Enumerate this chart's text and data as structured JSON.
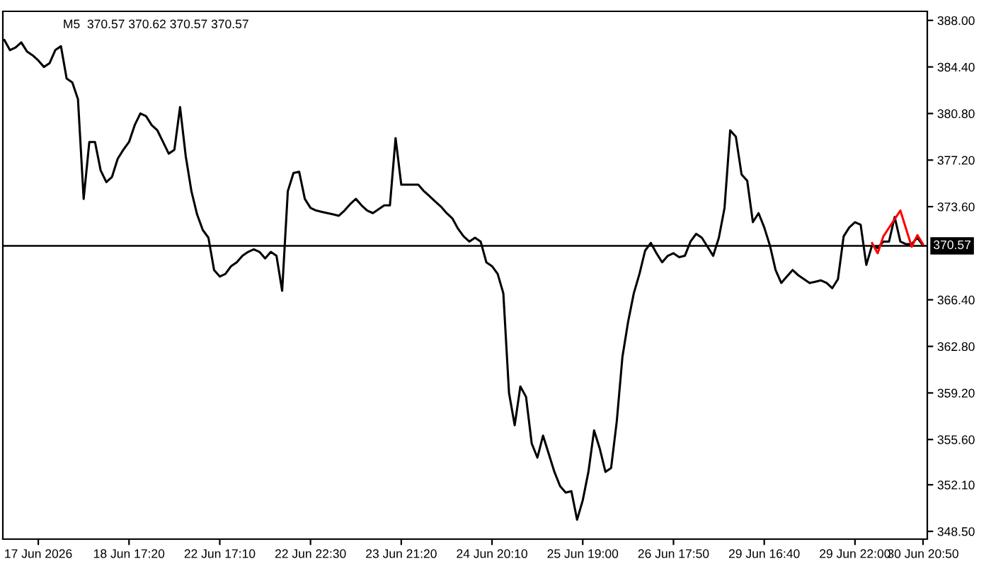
{
  "chart_data": {
    "type": "line",
    "title": "M5  370.57 370.62 370.57 370.57",
    "ylim": [
      347.9,
      388.7
    ],
    "categories": [
      null,
      null,
      null,
      null,
      null,
      null,
      "17 Jun 2026",
      null,
      null,
      null,
      null,
      null,
      null,
      null,
      null,
      null,
      null,
      null,
      null,
      null,
      null,
      null,
      "18 Jun 17:20",
      null,
      null,
      null,
      null,
      null,
      null,
      null,
      null,
      null,
      null,
      null,
      null,
      null,
      null,
      null,
      "22 Jun 17:10",
      null,
      null,
      null,
      null,
      null,
      null,
      null,
      null,
      null,
      null,
      null,
      null,
      null,
      null,
      null,
      "22 Jun 22:30",
      null,
      null,
      null,
      null,
      null,
      null,
      null,
      null,
      null,
      null,
      null,
      null,
      null,
      null,
      null,
      "23 Jun 21:20",
      null,
      null,
      null,
      null,
      null,
      null,
      null,
      null,
      null,
      null,
      null,
      null,
      null,
      null,
      null,
      "24 Jun 20:10",
      null,
      null,
      null,
      null,
      null,
      null,
      null,
      null,
      null,
      null,
      null,
      null,
      null,
      null,
      null,
      "25 Jun 19:00",
      null,
      null,
      null,
      null,
      null,
      null,
      null,
      null,
      null,
      null,
      null,
      null,
      null,
      null,
      null,
      "26 Jun 17:50",
      null,
      null,
      null,
      null,
      null,
      null,
      null,
      null,
      null,
      null,
      null,
      null,
      null,
      null,
      null,
      "29 Jun 16:40",
      null,
      null,
      null,
      null,
      null,
      null,
      null,
      null,
      null,
      null,
      null,
      null,
      null,
      null,
      null,
      "29 Jun 22:00",
      null,
      null,
      null,
      null,
      null,
      null,
      null,
      null,
      null,
      null,
      null,
      "30 Jun 20:50"
    ],
    "yticks": [
      {
        "value": 348.5,
        "label": "348.50"
      },
      {
        "value": 352.1,
        "label": "352.10"
      },
      {
        "value": 355.6,
        "label": "355.60"
      },
      {
        "value": 359.2,
        "label": "359.20"
      },
      {
        "value": 362.8,
        "label": "362.80"
      },
      {
        "value": 366.4,
        "label": "366.40"
      },
      {
        "value": 373.6,
        "label": "373.60"
      },
      {
        "value": 377.2,
        "label": "377.20"
      },
      {
        "value": 380.8,
        "label": "380.80"
      },
      {
        "value": 384.4,
        "label": "384.40"
      },
      {
        "value": 388.0,
        "label": "388.00"
      }
    ],
    "grid": false,
    "ref_lines": [
      {
        "axis": "y",
        "value": 370.57,
        "label": "370.57",
        "color": "#000000"
      }
    ],
    "series": [
      {
        "color": "#000000",
        "values": [
          386.5,
          385.7,
          385.9,
          386.3,
          385.6,
          385.3,
          384.9,
          384.4,
          384.7,
          385.7,
          386.0,
          383.5,
          383.2,
          381.9,
          374.2,
          378.6,
          378.6,
          376.4,
          375.5,
          375.9,
          377.3,
          378.0,
          378.6,
          379.9,
          380.8,
          380.6,
          379.9,
          379.5,
          378.6,
          377.7,
          378.0,
          381.3,
          377.5,
          374.8,
          373.0,
          371.8,
          371.2,
          368.7,
          368.2,
          368.4,
          369.0,
          369.3,
          369.8,
          370.1,
          370.3,
          370.1,
          369.6,
          370.1,
          369.8,
          367.1,
          374.8,
          376.2,
          376.3,
          374.2,
          373.5,
          373.3,
          373.2,
          373.1,
          373.0,
          372.9,
          373.3,
          373.8,
          374.2,
          373.7,
          373.3,
          373.1,
          373.4,
          373.7,
          373.7,
          378.9,
          375.3,
          375.3,
          375.3,
          375.3,
          374.8,
          374.4,
          374.0,
          373.6,
          373.1,
          372.7,
          371.9,
          371.3,
          370.9,
          371.2,
          370.9,
          369.3,
          369.0,
          368.4,
          366.9,
          359.2,
          356.7,
          359.7,
          358.9,
          355.3,
          354.2,
          355.9,
          354.5,
          353.1,
          352.0,
          351.5,
          351.6,
          349.4,
          350.9,
          353.1,
          356.3,
          354.9,
          353.1,
          353.4,
          357.0,
          362.0,
          364.7,
          366.9,
          368.4,
          370.2,
          370.8,
          370.0,
          369.3,
          369.8,
          370.0,
          369.7,
          369.8,
          370.9,
          371.5,
          371.2,
          370.5,
          369.8,
          371.2,
          373.5,
          379.5,
          379.0,
          376.1,
          375.6,
          372.4,
          373.1,
          372.0,
          370.6,
          368.7,
          367.7,
          368.2,
          368.7,
          368.3,
          368.0,
          367.7,
          367.8,
          367.9,
          367.7,
          367.3,
          368.0,
          371.3,
          372.0,
          372.4,
          372.2,
          369.1,
          370.6,
          370.4,
          370.9,
          370.9,
          372.8,
          370.9,
          370.7,
          370.7,
          371.2,
          370.6
        ]
      },
      {
        "color": "#ff0000",
        "values": [
          null,
          null,
          null,
          null,
          null,
          null,
          null,
          null,
          null,
          null,
          null,
          null,
          null,
          null,
          null,
          null,
          null,
          null,
          null,
          null,
          null,
          null,
          null,
          null,
          null,
          null,
          null,
          null,
          null,
          null,
          null,
          null,
          null,
          null,
          null,
          null,
          null,
          null,
          null,
          null,
          null,
          null,
          null,
          null,
          null,
          null,
          null,
          null,
          null,
          null,
          null,
          null,
          null,
          null,
          null,
          null,
          null,
          null,
          null,
          null,
          null,
          null,
          null,
          null,
          null,
          null,
          null,
          null,
          null,
          null,
          null,
          null,
          null,
          null,
          null,
          null,
          null,
          null,
          null,
          null,
          null,
          null,
          null,
          null,
          null,
          null,
          null,
          null,
          null,
          null,
          null,
          null,
          null,
          null,
          null,
          null,
          null,
          null,
          null,
          null,
          null,
          null,
          null,
          null,
          null,
          null,
          null,
          null,
          null,
          null,
          null,
          null,
          null,
          null,
          null,
          null,
          null,
          null,
          null,
          null,
          null,
          null,
          null,
          null,
          null,
          null,
          null,
          null,
          null,
          null,
          null,
          null,
          null,
          null,
          null,
          null,
          null,
          null,
          null,
          null,
          null,
          null,
          null,
          null,
          null,
          null,
          null,
          null,
          null,
          null,
          null,
          null,
          null,
          370.8,
          370.0,
          371.3,
          null,
          null,
          373.3,
          null,
          370.5,
          371.4,
          370.7
        ]
      }
    ]
  }
}
